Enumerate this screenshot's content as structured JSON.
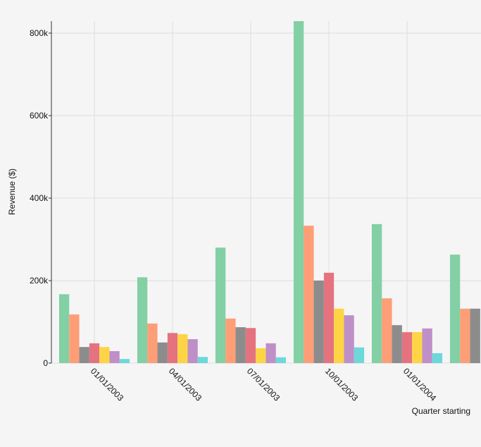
{
  "chart_data": {
    "type": "bar",
    "x_label": "Quarter starting",
    "y_label": "Revenue ($)",
    "categories": [
      "01/01/2003",
      "04/01/2003",
      "07/01/2003",
      "10/01/2003",
      "01/01/2004",
      null
    ],
    "series": [
      {
        "color": "#82d0a4",
        "values": [
          167000,
          208000,
          280000,
          829000,
          337000,
          263000
        ]
      },
      {
        "color": "#fd9e76",
        "values": [
          118000,
          96000,
          108000,
          333000,
          157000,
          132000
        ]
      },
      {
        "color": "#8c8c8c",
        "values": [
          39000,
          50000,
          87000,
          200000,
          92000,
          132000
        ]
      },
      {
        "color": "#e5737f",
        "values": [
          48000,
          73000,
          85000,
          219000,
          75000,
          null
        ]
      },
      {
        "color": "#fdd544",
        "values": [
          39000,
          70000,
          36000,
          132000,
          75000,
          null
        ]
      },
      {
        "color": "#bf8fc8",
        "values": [
          29000,
          58000,
          48000,
          116000,
          84000,
          null
        ]
      },
      {
        "color": "#6dd8da",
        "values": [
          10000,
          15000,
          14000,
          38000,
          24000,
          null
        ]
      }
    ],
    "ylim": [
      0,
      829000
    ],
    "yticks": [
      {
        "value": 0,
        "label": "0"
      },
      {
        "value": 200000,
        "label": "200k"
      },
      {
        "value": 400000,
        "label": "400k"
      },
      {
        "value": 600000,
        "label": "600k"
      },
      {
        "value": 800000,
        "label": "800k"
      }
    ],
    "grid": true
  }
}
